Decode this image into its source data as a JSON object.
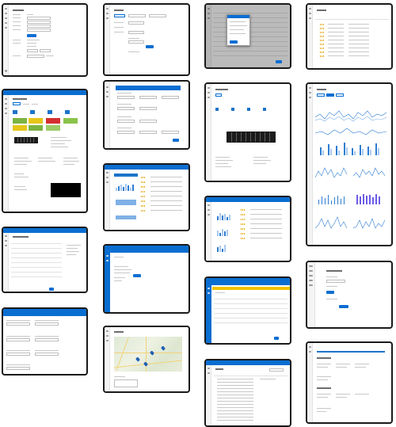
{
  "gallery": {
    "title": "",
    "tiles": [
      {
        "id": "t1",
        "kind": "form"
      },
      {
        "id": "t2",
        "kind": "form-tabs"
      },
      {
        "id": "t3",
        "kind": "table-popup"
      },
      {
        "id": "t4",
        "kind": "rating-list"
      },
      {
        "id": "t5",
        "kind": "server-detail"
      },
      {
        "id": "t6",
        "kind": "config-form"
      },
      {
        "id": "t7",
        "kind": "server-summary"
      },
      {
        "id": "t8",
        "kind": "charts-dashboard"
      },
      {
        "id": "t9",
        "kind": "mini-charts"
      },
      {
        "id": "t10",
        "kind": "mini-charts-2"
      },
      {
        "id": "t11",
        "kind": "table-detail"
      },
      {
        "id": "t12",
        "kind": "dialog"
      },
      {
        "id": "t13",
        "kind": "empty-form"
      },
      {
        "id": "t14",
        "kind": "warning-table"
      },
      {
        "id": "t15",
        "kind": "button-form"
      },
      {
        "id": "t16",
        "kind": "map"
      },
      {
        "id": "t17",
        "kind": "grouped-list"
      },
      {
        "id": "t18",
        "kind": "text-list"
      },
      {
        "id": "t19",
        "kind": "detail-sections"
      }
    ]
  },
  "colors": {
    "accent": "#0a6ed1",
    "frame": "#1a1a1a",
    "status_green": "#7cb342",
    "status_yellow": "#e6c619",
    "status_red": "#d32f2f",
    "warning": "#f2c200"
  },
  "icons": [
    "menu-icon",
    "star-icon",
    "pin-icon",
    "server-icon"
  ]
}
